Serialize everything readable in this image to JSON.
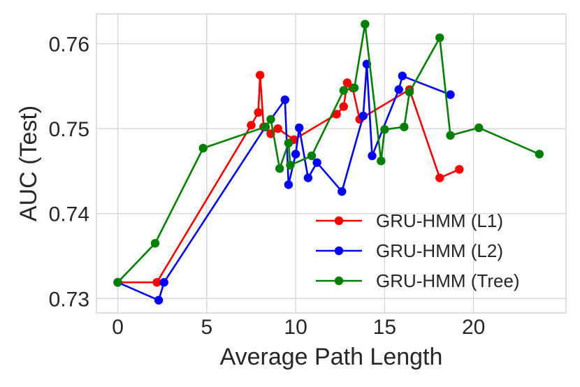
{
  "chart_data": {
    "type": "line",
    "title": "",
    "xlabel": "Average Path Length",
    "ylabel": "AUC (Test)",
    "xlim": [
      -1.2,
      25.2
    ],
    "ylim": [
      0.7283,
      0.7635
    ],
    "xticks": [
      0,
      5,
      10,
      15,
      20
    ],
    "xtick_labels": [
      "0",
      "5",
      "10",
      "15",
      "20"
    ],
    "yticks": [
      0.73,
      0.74,
      0.75,
      0.76
    ],
    "ytick_labels": [
      "0.73",
      "0.74",
      "0.75",
      "0.76"
    ],
    "grid": true,
    "legend_position": "lower-right",
    "series": [
      {
        "name": "GRU-HMM (L1)",
        "color": "#ff0000",
        "points": [
          [
            0.0,
            0.7319
          ],
          [
            2.2,
            0.7319
          ],
          [
            7.5,
            0.7504
          ],
          [
            7.9,
            0.7519
          ],
          [
            8.0,
            0.7563
          ],
          [
            8.2,
            0.7502
          ],
          [
            8.6,
            0.7494
          ],
          [
            9.0,
            0.75
          ],
          [
            9.9,
            0.7487
          ],
          [
            12.3,
            0.7517
          ],
          [
            12.7,
            0.7526
          ],
          [
            12.9,
            0.7554
          ],
          [
            13.2,
            0.7548
          ],
          [
            13.6,
            0.7511
          ],
          [
            16.4,
            0.7546
          ],
          [
            18.1,
            0.7442
          ],
          [
            19.2,
            0.7452
          ]
        ]
      },
      {
        "name": "GRU-HMM (L2)",
        "color": "#0000ff",
        "points": [
          [
            0.0,
            0.7319
          ],
          [
            2.3,
            0.7298
          ],
          [
            2.6,
            0.7319
          ],
          [
            8.3,
            0.7502
          ],
          [
            9.4,
            0.7534
          ],
          [
            9.6,
            0.7434
          ],
          [
            10.0,
            0.747
          ],
          [
            10.2,
            0.7501
          ],
          [
            10.7,
            0.7442
          ],
          [
            11.2,
            0.746
          ],
          [
            12.6,
            0.7426
          ],
          [
            13.8,
            0.7515
          ],
          [
            14.0,
            0.7576
          ],
          [
            14.3,
            0.7468
          ],
          [
            15.8,
            0.7546
          ],
          [
            16.0,
            0.7562
          ],
          [
            18.7,
            0.754
          ]
        ]
      },
      {
        "name": "GRU-HMM (Tree)",
        "color": "#008000",
        "points": [
          [
            0.0,
            0.7319
          ],
          [
            2.1,
            0.7365
          ],
          [
            4.8,
            0.7477
          ],
          [
            8.3,
            0.7502
          ],
          [
            8.6,
            0.7511
          ],
          [
            9.1,
            0.7453
          ],
          [
            9.6,
            0.7483
          ],
          [
            9.7,
            0.7457
          ],
          [
            10.9,
            0.7468
          ],
          [
            12.7,
            0.7545
          ],
          [
            13.3,
            0.7548
          ],
          [
            13.9,
            0.7623
          ],
          [
            14.8,
            0.7462
          ],
          [
            15.0,
            0.7499
          ],
          [
            16.1,
            0.7502
          ],
          [
            16.4,
            0.7543
          ],
          [
            18.1,
            0.7607
          ],
          [
            18.7,
            0.7492
          ],
          [
            20.3,
            0.7501
          ],
          [
            23.7,
            0.747
          ]
        ]
      }
    ]
  }
}
